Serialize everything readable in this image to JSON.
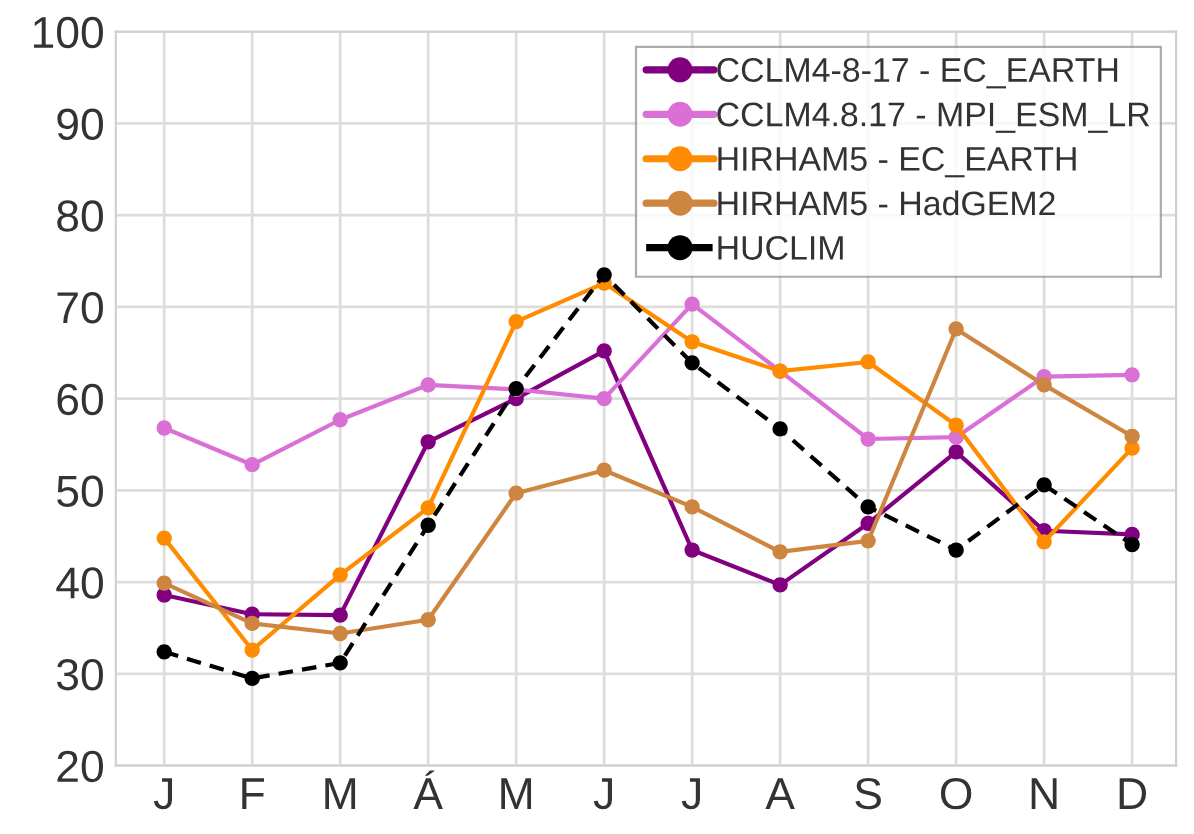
{
  "chart_data": {
    "type": "line",
    "categories": [
      "J",
      "F",
      "M",
      "Á",
      "M",
      "J",
      "J",
      "A",
      "S",
      "O",
      "N",
      "D"
    ],
    "series": [
      {
        "name": "CCLM4-8-17 - EC_EARTH",
        "color": "#800080",
        "values": [
          38.6,
          36.5,
          36.4,
          55.3,
          60.0,
          65.2,
          43.5,
          39.7,
          46.4,
          54.2,
          45.6,
          45.2
        ]
      },
      {
        "name": "CCLM4.8.17 - MPI_ESM_LR",
        "color": "#da70d6",
        "values": [
          56.8,
          52.8,
          57.7,
          61.5,
          61.0,
          60.0,
          70.3,
          63.0,
          55.6,
          55.8,
          62.4,
          62.6
        ]
      },
      {
        "name": "HIRHAM5 - EC_EARTH",
        "color": "#ff8c00",
        "values": [
          44.8,
          32.6,
          40.8,
          48.1,
          68.4,
          72.6,
          66.2,
          63.0,
          64.0,
          57.1,
          44.4,
          54.6
        ]
      },
      {
        "name": "HIRHAM5 - HadGEM2",
        "color": "#cd853f",
        "values": [
          39.9,
          35.5,
          34.4,
          35.9,
          49.7,
          52.2,
          48.2,
          43.3,
          44.5,
          67.6,
          61.5,
          55.9
        ]
      },
      {
        "name": "HUCLIM",
        "color": "#000000",
        "line_style": "dashed",
        "values": [
          32.4,
          29.5,
          31.2,
          46.2,
          61.1,
          73.5,
          63.9,
          56.7,
          48.2,
          43.5,
          50.6,
          44.1
        ]
      }
    ],
    "ylim": [
      20,
      100
    ],
    "yticks": [
      20,
      30,
      40,
      50,
      60,
      70,
      80,
      90,
      100
    ],
    "grid": true,
    "legend": "top right",
    "marker": "circle",
    "line_style": "solid"
  }
}
